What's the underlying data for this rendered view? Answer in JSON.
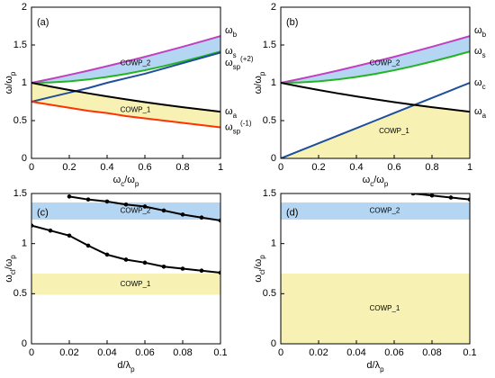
{
  "chart_data": [
    {
      "type": "line",
      "label": "(a)",
      "xlabel": "ωc/ωp",
      "ylabel": "ω/ωp",
      "xlim": [
        0,
        1
      ],
      "ylim": [
        0,
        2
      ],
      "xticks": [
        0,
        0.2,
        0.4,
        0.6,
        0.8,
        1
      ],
      "yticks": [
        0,
        0.5,
        1,
        1.5,
        2
      ],
      "x": [
        0,
        0.1,
        0.2,
        0.3,
        0.4,
        0.5,
        0.6,
        0.7,
        0.8,
        0.9,
        1
      ],
      "series": [
        {
          "name": "ωb",
          "color": "#c040c0",
          "values": [
            1,
            1.051,
            1.105,
            1.161,
            1.22,
            1.281,
            1.344,
            1.41,
            1.477,
            1.547,
            1.618
          ]
        },
        {
          "name": "ωs",
          "color": "#22b422",
          "values": [
            1,
            1.005,
            1.02,
            1.044,
            1.077,
            1.118,
            1.166,
            1.221,
            1.281,
            1.345,
            1.414
          ]
        },
        {
          "name": "ωsp(+2)",
          "color": "#1f4e9a",
          "values": [
            0.75,
            0.81,
            0.87,
            0.93,
            1.0,
            1.06,
            1.12,
            1.19,
            1.26,
            1.33,
            1.4
          ]
        },
        {
          "name": "ωa",
          "color": "#000000",
          "values": [
            1,
            0.951,
            0.905,
            0.861,
            0.82,
            0.781,
            0.744,
            0.71,
            0.677,
            0.647,
            0.618
          ]
        },
        {
          "name": "ωsp(-1)",
          "color": "#ff3300",
          "values": [
            0.75,
            0.71,
            0.67,
            0.63,
            0.6,
            0.56,
            0.53,
            0.5,
            0.47,
            0.44,
            0.41
          ]
        }
      ],
      "fills": [
        {
          "label": "COWP_2",
          "between": [
            "ωs",
            "ωb"
          ],
          "color": "#b4d6f2"
        },
        {
          "label": "COWP_1",
          "between": [
            "ωsp(-1)",
            "ωa"
          ],
          "color": "#f7f2b4"
        }
      ]
    },
    {
      "type": "line",
      "label": "(b)",
      "xlabel": "ωc/ωp",
      "ylabel": "ω/ωp",
      "xlim": [
        0,
        1
      ],
      "ylim": [
        0,
        2
      ],
      "xticks": [
        0,
        0.2,
        0.4,
        0.6,
        0.8,
        1
      ],
      "yticks": [
        0,
        0.5,
        1,
        1.5,
        2
      ],
      "x": [
        0,
        0.1,
        0.2,
        0.3,
        0.4,
        0.5,
        0.6,
        0.7,
        0.8,
        0.9,
        1
      ],
      "series": [
        {
          "name": "ωb",
          "color": "#c040c0",
          "values": [
            1,
            1.051,
            1.105,
            1.161,
            1.22,
            1.281,
            1.344,
            1.41,
            1.477,
            1.547,
            1.618
          ]
        },
        {
          "name": "ωs",
          "color": "#22b422",
          "values": [
            1,
            1.005,
            1.02,
            1.044,
            1.077,
            1.118,
            1.166,
            1.221,
            1.281,
            1.345,
            1.414
          ]
        },
        {
          "name": "ωc",
          "color": "#1f4e9a",
          "values": [
            0,
            0.1,
            0.2,
            0.3,
            0.4,
            0.5,
            0.6,
            0.7,
            0.8,
            0.9,
            1
          ]
        },
        {
          "name": "ωa",
          "color": "#000000",
          "values": [
            1,
            0.951,
            0.905,
            0.861,
            0.82,
            0.781,
            0.744,
            0.71,
            0.677,
            0.647,
            0.618
          ]
        }
      ],
      "fills": [
        {
          "label": "COWP_2",
          "between": [
            "ωs",
            "ωb"
          ],
          "color": "#b4d6f2"
        },
        {
          "label": "COWP_1",
          "under": [
            "ωa",
            "ωc"
          ],
          "color": "#f7f2b4"
        }
      ]
    },
    {
      "type": "line",
      "label": "(c)",
      "xlabel": "d/λp",
      "ylabel": "ωcl/ωp",
      "xlim": [
        0,
        0.1
      ],
      "ylim": [
        0,
        1.5
      ],
      "xticks": [
        0,
        0.02,
        0.04,
        0.06,
        0.08,
        0.1
      ],
      "yticks": [
        0,
        0.5,
        1,
        1.5
      ],
      "x": [
        0,
        0.01,
        0.02,
        0.03,
        0.04,
        0.05,
        0.06,
        0.07,
        0.08,
        0.09,
        0.1
      ],
      "markers": true,
      "series": [
        {
          "color": "#000000",
          "values": [
            null,
            null,
            1.47,
            1.44,
            1.42,
            1.39,
            1.37,
            1.33,
            1.29,
            1.26,
            1.23
          ]
        },
        {
          "color": "#000000",
          "values": [
            1.18,
            1.13,
            1.08,
            0.98,
            0.89,
            0.84,
            0.81,
            0.77,
            0.75,
            0.73,
            0.71
          ]
        }
      ],
      "bands": [
        {
          "label": "COWP_2",
          "range": [
            1.24,
            1.41
          ],
          "color": "#b4d6f2"
        },
        {
          "label": "COWP_1",
          "range": [
            0.49,
            0.7
          ],
          "color": "#f7f2b4"
        }
      ]
    },
    {
      "type": "line",
      "label": "(d)",
      "xlabel": "d/λp",
      "ylabel": "ωcl/ωp",
      "xlim": [
        0,
        0.1
      ],
      "ylim": [
        0,
        1.5
      ],
      "xticks": [
        0,
        0.02,
        0.04,
        0.06,
        0.08,
        0.1
      ],
      "yticks": [
        0,
        0.5,
        1,
        1.5
      ],
      "x": [
        0.07,
        0.08,
        0.09,
        0.1
      ],
      "markers": true,
      "series": [
        {
          "color": "#000000",
          "values": [
            1.5,
            1.48,
            1.46,
            1.44
          ]
        }
      ],
      "bands": [
        {
          "label": "COWP_2",
          "range": [
            1.24,
            1.41
          ],
          "color": "#b4d6f2"
        },
        {
          "label": "COWP_1",
          "range": [
            0,
            0.7
          ],
          "color": "#f7f2b4"
        }
      ]
    }
  ]
}
